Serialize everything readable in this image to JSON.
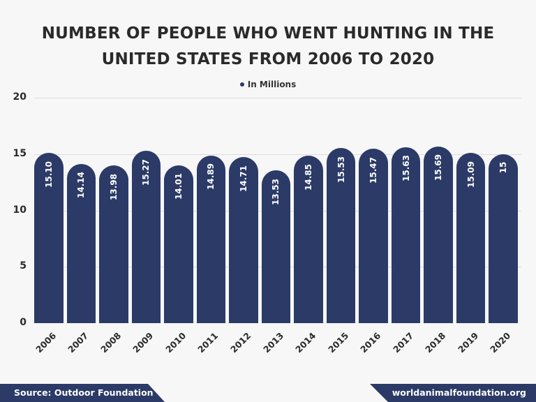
{
  "title_line1": "NUMBER OF PEOPLE WHO WENT HUNTING IN THE",
  "title_line2": "UNITED STATES FROM 2006 TO 2020",
  "legend": {
    "label": "In Millions",
    "color": "#2b3a67"
  },
  "footer": {
    "source": "Source: Outdoor Foundation",
    "site": "worldanimalfoundation.org"
  },
  "colors": {
    "bar": "#2b3a67",
    "background": "#f7f7f7",
    "grid": "#dcdcdc",
    "text": "#2b2b2b"
  },
  "chart_data": {
    "type": "bar",
    "title": "NUMBER OF PEOPLE WHO WENT HUNTING IN THE UNITED STATES FROM 2006 TO 2020",
    "xlabel": "",
    "ylabel": "",
    "ylim": [
      0,
      20
    ],
    "yticks": [
      0,
      5,
      10,
      15,
      20
    ],
    "grid": true,
    "legend_position": "top",
    "categories": [
      "2006",
      "2007",
      "2008",
      "2009",
      "2010",
      "2011",
      "2012",
      "2013",
      "2014",
      "2015",
      "2016",
      "2017",
      "2018",
      "2019",
      "2020"
    ],
    "series": [
      {
        "name": "In Millions",
        "values": [
          15.1,
          14.14,
          13.98,
          15.27,
          14.01,
          14.89,
          14.71,
          13.53,
          14.85,
          15.53,
          15.47,
          15.63,
          15.69,
          15.09,
          15
        ],
        "labels": [
          "15.10",
          "14.14",
          "13.98",
          "15.27",
          "14.01",
          "14.89",
          "14.71",
          "13.53",
          "14.85",
          "15.53",
          "15.47",
          "15.63",
          "15.69",
          "15.09",
          "15"
        ]
      }
    ]
  }
}
